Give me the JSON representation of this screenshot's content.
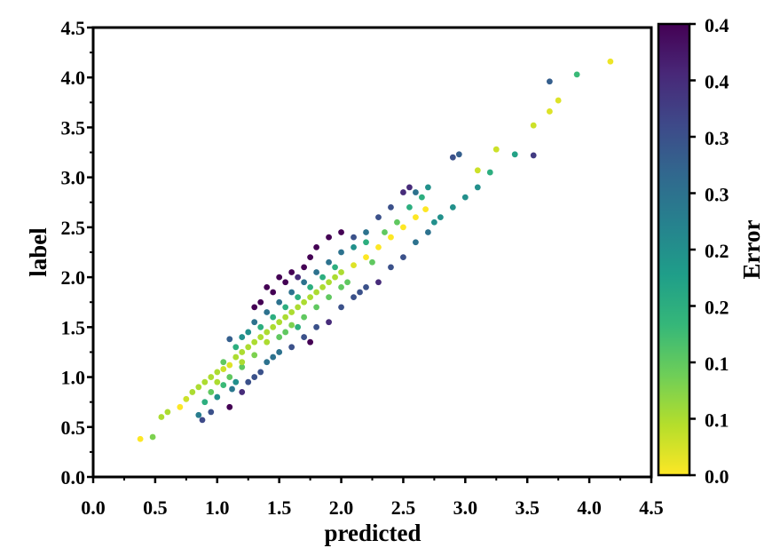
{
  "chart_data": {
    "type": "scatter",
    "title": "",
    "xlabel": "predicted",
    "ylabel": "label",
    "xlim": [
      0,
      4.5
    ],
    "ylim": [
      0,
      4.5
    ],
    "xticks": [
      "0.0",
      "0.5",
      "1.0",
      "1.5",
      "2.0",
      "2.5",
      "3.0",
      "3.5",
      "4.0",
      "4.5"
    ],
    "yticks": [
      "0.0",
      "0.5",
      "1.0",
      "1.5",
      "2.0",
      "2.5",
      "3.0",
      "3.5",
      "4.0",
      "4.5"
    ],
    "grid": false,
    "color_encoding": "Error = |label - predicted|, viridis (reversed)",
    "colorbar": {
      "label": "Error",
      "range": [
        0,
        0.4
      ],
      "tick_values": [
        0,
        0.05,
        0.1,
        0.15,
        0.2,
        0.25,
        0.3,
        0.35,
        0.4
      ],
      "tick_labels": [
        "0.0",
        "0.1",
        "0.1",
        "0.2",
        "0.2",
        "0.3",
        "0.3",
        "0.4",
        "0.4"
      ],
      "colors": [
        "#fde725",
        "#b5de2b",
        "#6ece58",
        "#35b779",
        "#1f9e89",
        "#26828e",
        "#31688e",
        "#3e4989",
        "#482878",
        "#440154"
      ]
    },
    "points": [
      [
        0.38,
        0.38
      ],
      [
        0.55,
        0.6
      ],
      [
        0.6,
        0.65
      ],
      [
        0.7,
        0.7
      ],
      [
        0.75,
        0.78
      ],
      [
        0.8,
        0.85
      ],
      [
        0.85,
        0.9
      ],
      [
        0.9,
        0.95
      ],
      [
        0.95,
        1.0
      ],
      [
        1.0,
        1.05
      ],
      [
        1.05,
        1.08
      ],
      [
        1.1,
        1.12
      ],
      [
        1.15,
        1.2
      ],
      [
        1.2,
        1.25
      ],
      [
        1.25,
        1.3
      ],
      [
        1.3,
        1.35
      ],
      [
        1.35,
        1.4
      ],
      [
        1.4,
        1.45
      ],
      [
        1.45,
        1.5
      ],
      [
        1.5,
        1.55
      ],
      [
        1.55,
        1.6
      ],
      [
        1.6,
        1.65
      ],
      [
        1.65,
        1.7
      ],
      [
        1.7,
        1.75
      ],
      [
        1.75,
        1.8
      ],
      [
        1.8,
        1.85
      ],
      [
        1.85,
        1.9
      ],
      [
        1.9,
        1.95
      ],
      [
        1.95,
        2.0
      ],
      [
        2.0,
        2.05
      ],
      [
        2.1,
        2.12
      ],
      [
        2.2,
        2.2
      ],
      [
        2.3,
        2.3
      ],
      [
        2.4,
        2.4
      ],
      [
        2.5,
        2.5
      ],
      [
        2.6,
        2.6
      ],
      [
        2.68,
        2.68
      ],
      [
        3.1,
        3.07
      ],
      [
        3.25,
        3.28
      ],
      [
        3.55,
        3.52
      ],
      [
        3.68,
        3.66
      ],
      [
        3.75,
        3.77
      ],
      [
        4.17,
        4.16
      ],
      [
        1.4,
        1.9
      ],
      [
        1.5,
        2.0
      ],
      [
        1.6,
        2.05
      ],
      [
        1.7,
        2.1
      ],
      [
        1.75,
        2.2
      ],
      [
        1.8,
        2.3
      ],
      [
        1.9,
        2.4
      ],
      [
        2.0,
        2.45
      ],
      [
        2.1,
        2.4
      ],
      [
        2.2,
        2.45
      ],
      [
        2.3,
        2.6
      ],
      [
        2.4,
        2.7
      ],
      [
        2.5,
        2.85
      ],
      [
        2.55,
        2.9
      ],
      [
        2.6,
        2.85
      ],
      [
        2.9,
        3.2
      ],
      [
        2.95,
        3.23
      ],
      [
        3.68,
        3.96
      ],
      [
        1.3,
        1.7
      ],
      [
        1.35,
        1.75
      ],
      [
        1.45,
        1.85
      ],
      [
        1.55,
        1.95
      ],
      [
        1.65,
        2.0
      ],
      [
        1.2,
        1.4
      ],
      [
        1.1,
        1.38
      ],
      [
        1.3,
        1.55
      ],
      [
        1.4,
        1.65
      ],
      [
        1.5,
        1.75
      ],
      [
        1.6,
        1.85
      ],
      [
        1.7,
        1.95
      ],
      [
        1.8,
        2.05
      ],
      [
        1.9,
        2.15
      ],
      [
        2.0,
        2.25
      ],
      [
        2.1,
        2.3
      ],
      [
        2.2,
        2.35
      ],
      [
        2.35,
        2.45
      ],
      [
        2.45,
        2.55
      ],
      [
        2.55,
        2.7
      ],
      [
        2.65,
        2.8
      ],
      [
        2.7,
        2.9
      ],
      [
        0.85,
        0.62
      ],
      [
        0.88,
        0.57
      ],
      [
        0.9,
        0.75
      ],
      [
        0.95,
        0.65
      ],
      [
        1.0,
        0.8
      ],
      [
        1.05,
        0.92
      ],
      [
        1.1,
        0.7
      ],
      [
        1.12,
        0.88
      ],
      [
        1.15,
        0.95
      ],
      [
        1.2,
        0.85
      ],
      [
        1.25,
        0.95
      ],
      [
        1.3,
        1.0
      ],
      [
        1.35,
        1.05
      ],
      [
        1.4,
        1.15
      ],
      [
        1.45,
        1.2
      ],
      [
        1.5,
        1.25
      ],
      [
        1.6,
        1.3
      ],
      [
        1.7,
        1.4
      ],
      [
        1.75,
        1.35
      ],
      [
        1.8,
        1.5
      ],
      [
        1.9,
        1.55
      ],
      [
        2.0,
        1.7
      ],
      [
        2.1,
        1.8
      ],
      [
        2.15,
        1.85
      ],
      [
        2.2,
        1.9
      ],
      [
        2.3,
        1.95
      ],
      [
        2.4,
        2.1
      ],
      [
        2.5,
        2.2
      ],
      [
        2.6,
        2.35
      ],
      [
        2.7,
        2.45
      ],
      [
        2.75,
        2.55
      ],
      [
        2.8,
        2.6
      ],
      [
        2.9,
        2.7
      ],
      [
        3.0,
        2.8
      ],
      [
        3.1,
        2.9
      ],
      [
        3.2,
        3.05
      ],
      [
        3.4,
        3.23
      ],
      [
        3.55,
        3.22
      ],
      [
        3.9,
        4.03
      ],
      [
        0.48,
        0.4
      ],
      [
        1.55,
        1.45
      ],
      [
        1.65,
        1.5
      ],
      [
        1.2,
        1.1
      ],
      [
        1.0,
        0.95
      ],
      [
        1.1,
        1.0
      ],
      [
        2.05,
        1.95
      ],
      [
        2.25,
        2.15
      ],
      [
        1.35,
        1.5
      ],
      [
        1.45,
        1.6
      ],
      [
        1.55,
        1.7
      ],
      [
        1.65,
        1.8
      ],
      [
        1.75,
        1.9
      ],
      [
        1.85,
        2.0
      ],
      [
        1.95,
        2.1
      ],
      [
        1.25,
        1.45
      ],
      [
        1.15,
        1.3
      ],
      [
        1.05,
        1.15
      ],
      [
        1.4,
        1.35
      ],
      [
        1.5,
        1.4
      ],
      [
        1.6,
        1.52
      ],
      [
        1.7,
        1.6
      ],
      [
        1.8,
        1.7
      ],
      [
        1.9,
        1.8
      ],
      [
        2.0,
        1.9
      ],
      [
        1.3,
        1.22
      ],
      [
        1.2,
        1.15
      ],
      [
        0.95,
        0.85
      ]
    ]
  }
}
